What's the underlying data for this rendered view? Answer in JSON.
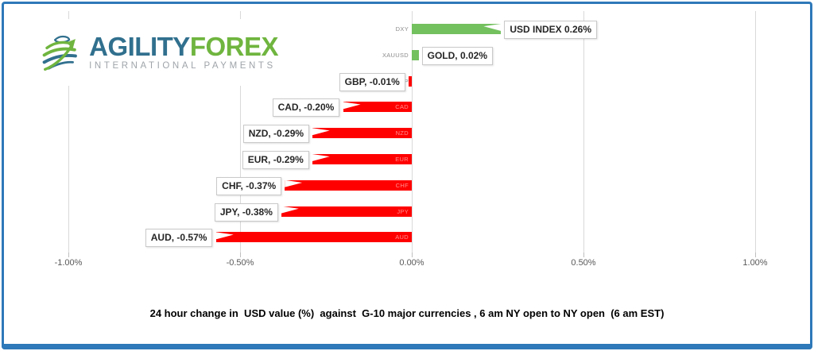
{
  "logo": {
    "brand_primary": "AGILITY",
    "brand_secondary": "FOREX",
    "tagline": "INTERNATIONAL PAYMENTS",
    "colors": {
      "primary": "#31708E",
      "secondary": "#6FB53F",
      "tagline": "#9FA4A9"
    }
  },
  "caption": "24 hour change in  USD value (%)  against  G-10 major currencies , 6 am NY open to NY open  (6 am EST)",
  "chart_data": {
    "type": "bar",
    "orientation": "horizontal",
    "title": "",
    "categories": [
      "DXY",
      "XAUUSD",
      "GBP",
      "CAD",
      "NZD",
      "EUR",
      "CHF",
      "JPY",
      "AUD"
    ],
    "values": [
      0.26,
      0.02,
      -0.01,
      -0.2,
      -0.29,
      -0.29,
      -0.37,
      -0.38,
      -0.57
    ],
    "data_labels": [
      "USD INDEX 0.26%",
      "GOLD, 0.02%",
      "GBP, -0.01%",
      "CAD, -0.20%",
      "NZD, -0.29%",
      "EUR, -0.29%",
      "CHF, -0.37%",
      "JPY, -0.38%",
      "AUD, -0.57%"
    ],
    "x_ticks": [
      "-1.00%",
      "-0.50%",
      "0.00%",
      "0.50%",
      "1.00%"
    ],
    "x_tick_values": [
      -1,
      -0.5,
      0,
      0.5,
      1
    ],
    "xlim": [
      -1,
      1
    ],
    "grid": true,
    "legend": false,
    "colors": {
      "positive_bar": "#73C05F",
      "negative_bar": "#FF0000",
      "gridline": "#D9D9D9",
      "frame": "#2E79B9",
      "tick_text": "#595959",
      "category_text": "#8C8C8C",
      "category_text_on_bar": "rgba(255,255,255,0.55)"
    }
  }
}
